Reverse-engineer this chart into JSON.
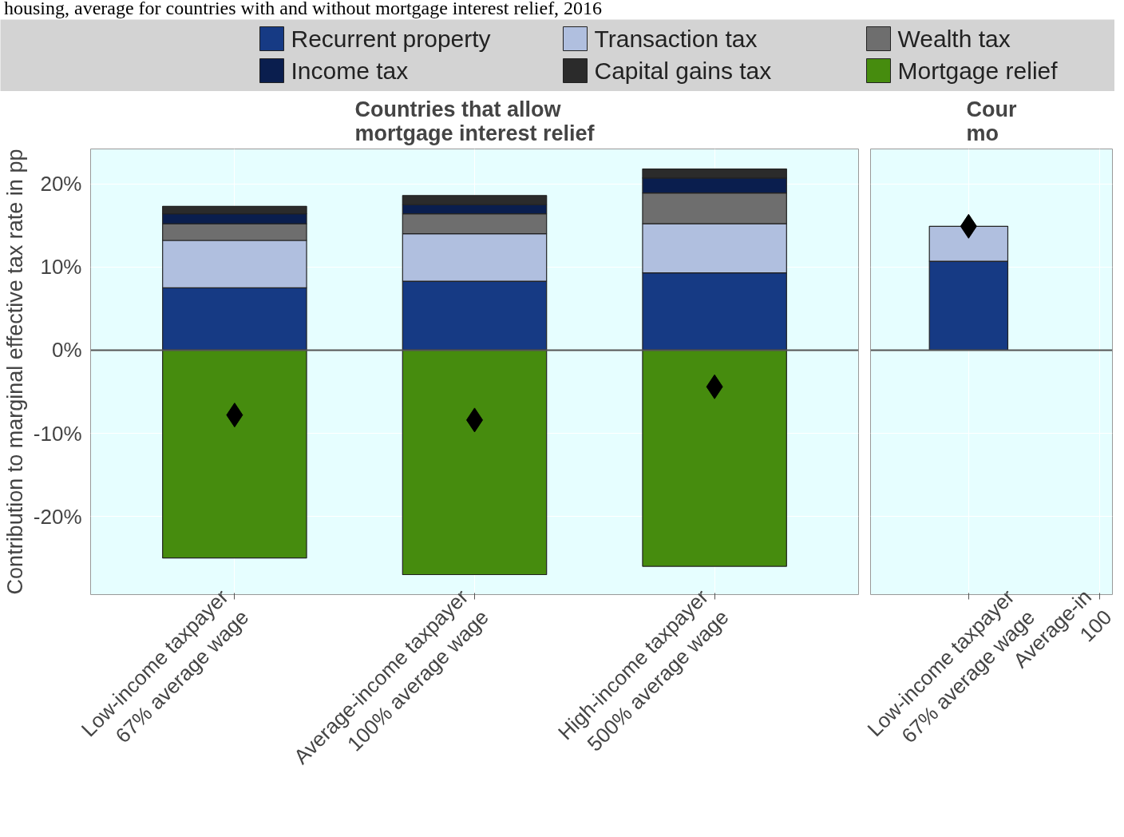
{
  "chart_data": [
    {
      "type": "bar",
      "stacked": true,
      "title": "Countries that allow\nmortgage interest relief",
      "ylabel": "Contribution to marginal effective tax rate in pp",
      "annotations": [
        "housing, average for countries with and without mortgage interest relief, 2016"
      ],
      "categories": [
        "Low-income taxpayer\n67% average wage",
        "Average-income taxpayer\n100% average wage",
        "High-income taxpayer\n500% average wage"
      ],
      "series": [
        {
          "name": "Recurrent property",
          "color": "#163a84",
          "values": [
            7.5,
            8.3,
            9.3
          ]
        },
        {
          "name": "Transaction tax",
          "color": "#b0bfdf",
          "values": [
            5.7,
            5.7,
            5.9
          ]
        },
        {
          "name": "Wealth tax",
          "color": "#6e6e6e",
          "values": [
            2.0,
            2.4,
            3.7
          ]
        },
        {
          "name": "Income tax",
          "color": "#0a1e4e",
          "values": [
            1.2,
            1.1,
            1.8
          ]
        },
        {
          "name": "Capital gains tax",
          "color": "#2b2b2b",
          "values": [
            0.9,
            1.1,
            1.1
          ]
        },
        {
          "name": "Mortgage relief",
          "color": "#468c0e",
          "values": [
            -25.0,
            -27.0,
            -26.0
          ]
        },
        {
          "type": "scatter",
          "color": "#000000",
          "marker": "diamond",
          "values": [
            -7.8,
            -8.4,
            -4.4
          ]
        }
      ],
      "ylim": [
        -29.4,
        24.2
      ],
      "yticks": [
        {
          "value": -20,
          "label": "-20%"
        },
        {
          "value": -10,
          "label": "-10%"
        },
        {
          "value": 0,
          "label": "0%"
        },
        {
          "value": 10,
          "label": "10%"
        },
        {
          "value": 20,
          "label": "20%"
        }
      ],
      "ref_lines": [
        {
          "axis": "y",
          "value": 0,
          "color": "#555555"
        }
      ],
      "grid": true,
      "legend": "top"
    },
    {
      "type": "bar",
      "stacked": true,
      "title": "Cour\nmo",
      "categories": [
        "Low-income taxpayer\n67% average wage",
        "Average-in\n100"
      ],
      "series": [
        {
          "color": "#163a84",
          "values": [
            10.7,
            null
          ]
        },
        {
          "color": "#b0bfdf",
          "values": [
            4.2,
            null
          ]
        },
        {
          "type": "scatter",
          "color": "#000000",
          "marker": "diamond",
          "values": [
            14.9,
            null
          ]
        }
      ],
      "ylim": [
        -29.4,
        24.2
      ],
      "ref_lines": [
        {
          "axis": "y",
          "value": 0,
          "color": "#555555"
        }
      ],
      "grid": true,
      "tick_labels": "x",
      "yticks": [
        -20,
        -10,
        0,
        10,
        20
      ]
    }
  ]
}
